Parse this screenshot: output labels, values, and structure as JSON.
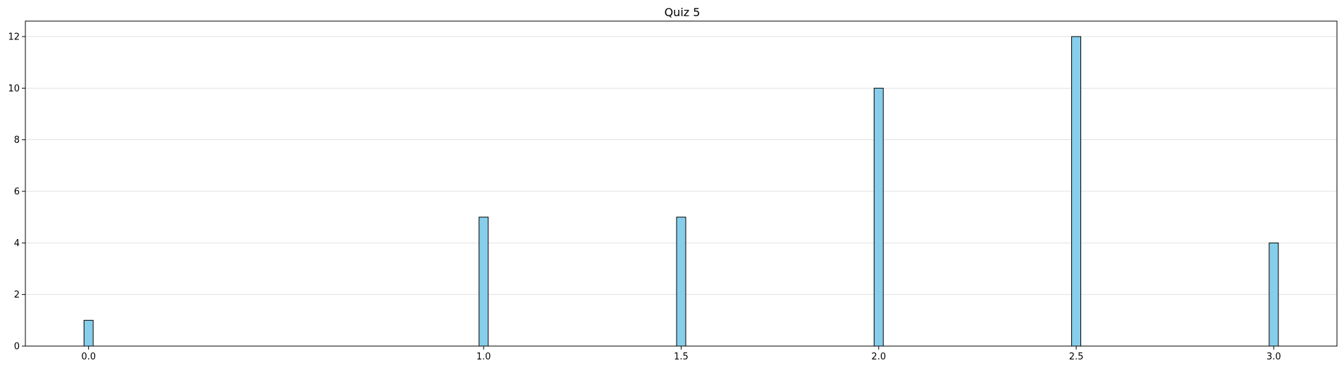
{
  "chart_data": {
    "type": "bar",
    "title": "Quiz 5",
    "xlabel": "",
    "ylabel": "",
    "x": [
      0.0,
      1.0,
      1.5,
      2.0,
      2.5,
      3.0
    ],
    "values": [
      1,
      5,
      5,
      10,
      12,
      4
    ],
    "x_tick_labels": [
      "0.0",
      "1.0",
      "1.5",
      "2.0",
      "2.5",
      "3.0"
    ],
    "y_tick_labels": [
      "0",
      "2",
      "4",
      "6",
      "8",
      "10",
      "12"
    ],
    "y_ticks": [
      0,
      2,
      4,
      6,
      8,
      10,
      12
    ],
    "xlim": [
      -0.16,
      3.16
    ],
    "ylim": [
      0,
      12.6
    ],
    "grid": "y",
    "bar_color": "#87CEEB",
    "edge_color": "#000000",
    "grid_color": "#e0e0e0"
  }
}
